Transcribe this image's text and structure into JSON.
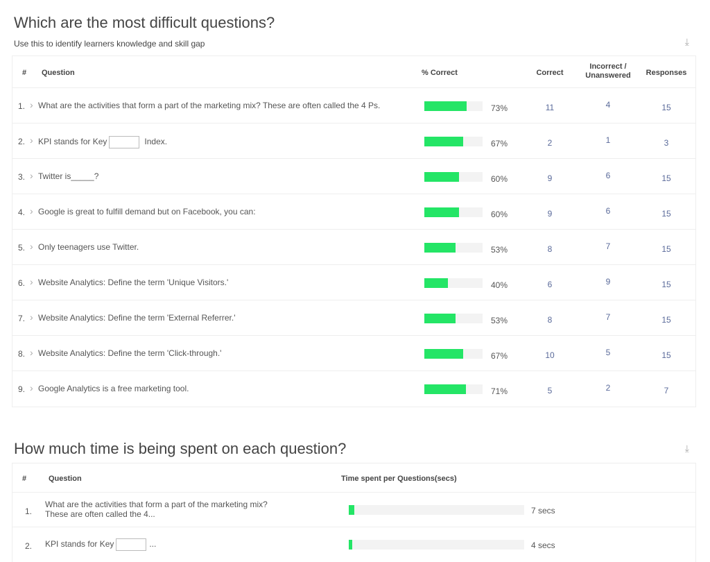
{
  "difficulty": {
    "title": "Which are the most difficult questions?",
    "subtitle": "Use this to identify learners knowledge and skill gap",
    "download_icon": "download-icon",
    "headers": {
      "num": "#",
      "question": "Question",
      "pct": "% Correct",
      "correct": "Correct",
      "incorrect": "Incorrect / Unanswered",
      "responses": "Responses"
    },
    "rows": [
      {
        "num": "1.",
        "q": "What are the activities that form a part of the marketing mix? These are often called the 4 Ps.",
        "pct": 73,
        "pct_label": "73%",
        "correct": "11",
        "incorrect": "4",
        "responses": "15"
      },
      {
        "num": "2.",
        "q": "KPI stands for Key",
        "q_after": "Index.",
        "pct": 67,
        "pct_label": "67%",
        "correct": "2",
        "incorrect": "1",
        "responses": "3"
      },
      {
        "num": "3.",
        "q": "Twitter is_____?",
        "pct": 60,
        "pct_label": "60%",
        "correct": "9",
        "incorrect": "6",
        "responses": "15"
      },
      {
        "num": "4.",
        "q": "Google is great to fulfill demand but on Facebook, you can:",
        "pct": 60,
        "pct_label": "60%",
        "correct": "9",
        "incorrect": "6",
        "responses": "15"
      },
      {
        "num": "5.",
        "q": "Only teenagers use Twitter.",
        "pct": 53,
        "pct_label": "53%",
        "correct": "8",
        "incorrect": "7",
        "responses": "15"
      },
      {
        "num": "6.",
        "q": "Website Analytics: Define the term 'Unique Visitors.'",
        "pct": 40,
        "pct_label": "40%",
        "correct": "6",
        "incorrect": "9",
        "responses": "15"
      },
      {
        "num": "7.",
        "q": "Website Analytics: Define the term 'External Referrer.'",
        "pct": 53,
        "pct_label": "53%",
        "correct": "8",
        "incorrect": "7",
        "responses": "15"
      },
      {
        "num": "8.",
        "q": "Website Analytics: Define the term 'Click-through.'",
        "pct": 67,
        "pct_label": "67%",
        "correct": "10",
        "incorrect": "5",
        "responses": "15"
      },
      {
        "num": "9.",
        "q": "Google Analytics is a free marketing tool.",
        "pct": 71,
        "pct_label": "71%",
        "correct": "5",
        "incorrect": "2",
        "responses": "7"
      }
    ]
  },
  "time": {
    "title": "How much time is being spent on each question?",
    "download_icon": "download-icon",
    "headers": {
      "num": "#",
      "question": "Question",
      "time": "Time spent per Questions(secs)"
    },
    "rows": [
      {
        "num": "1.",
        "q": "What are the activities that form a part of the marketing mix?",
        "q2": "These are often called the 4...",
        "secs": 7,
        "label": "7 secs"
      },
      {
        "num": "2.",
        "q": "KPI stands for Key",
        "q_after": "...",
        "secs": 4,
        "label": "4 secs"
      }
    ]
  }
}
